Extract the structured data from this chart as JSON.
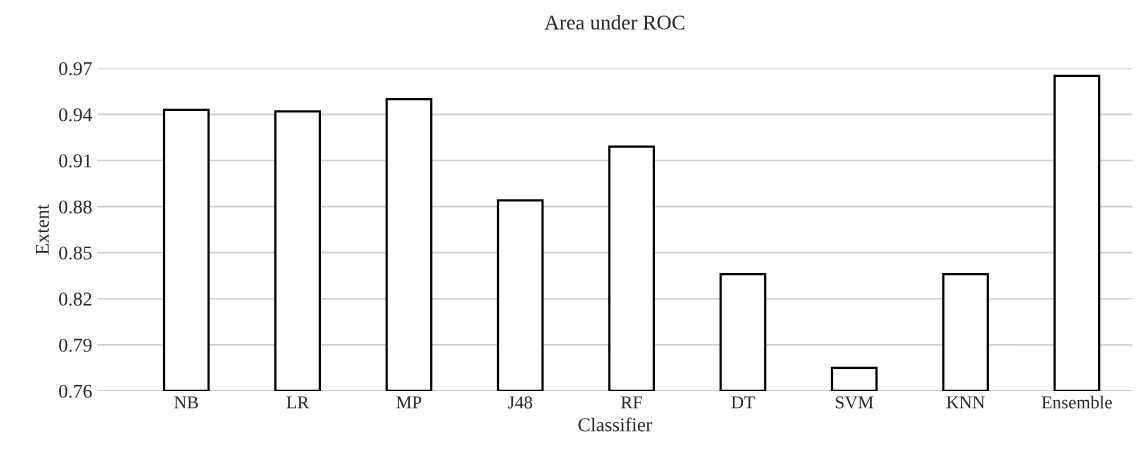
{
  "chart_data": {
    "type": "bar",
    "title": "Area under ROC",
    "xlabel": "Classifier",
    "ylabel": "Extent",
    "categories": [
      "NB",
      "LR",
      "MP",
      "J48",
      "RF",
      "DT",
      "SVM",
      "KNN",
      "Ensemble"
    ],
    "values": [
      0.943,
      0.942,
      0.95,
      0.884,
      0.919,
      0.836,
      0.775,
      0.836,
      0.965
    ],
    "color": "#ffffff",
    "ylim": [
      0.76,
      0.97
    ],
    "yticks": [
      0.76,
      0.79,
      0.82,
      0.85,
      0.88,
      0.91,
      0.94,
      0.97
    ],
    "grid": "y"
  }
}
